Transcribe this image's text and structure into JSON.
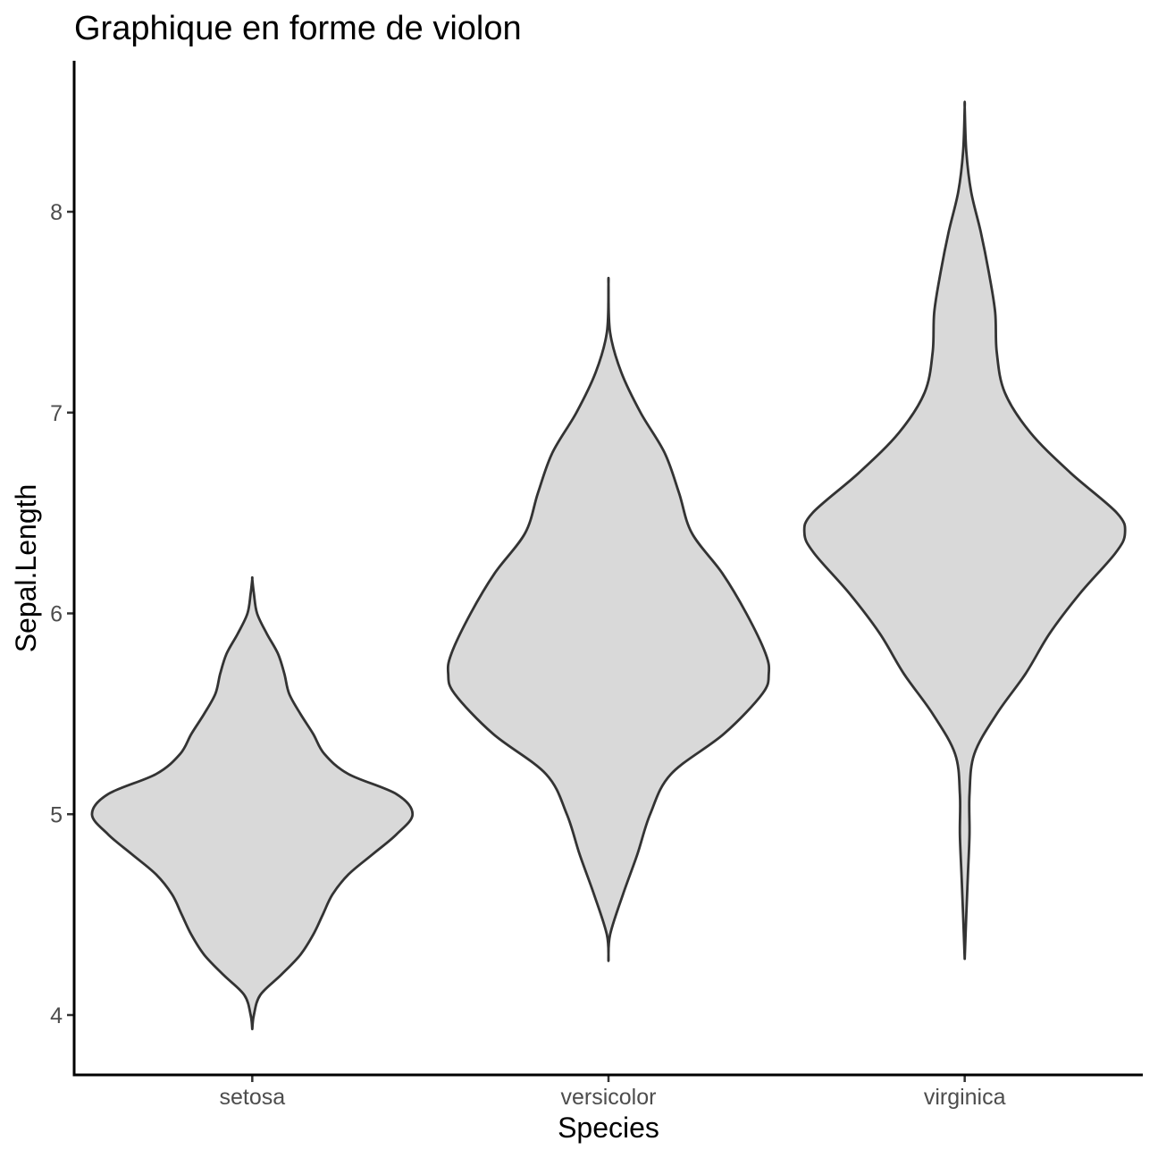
{
  "chart_data": {
    "type": "violin",
    "title": "Graphique en forme de violon",
    "xlabel": "Species",
    "ylabel": "Sepal.Length",
    "categories": [
      "setosa",
      "versicolor",
      "virginica"
    ],
    "y_ticks": [
      4,
      5,
      6,
      7,
      8
    ],
    "ylim": [
      3.7,
      8.65
    ],
    "grid": false,
    "legend": "none",
    "fill_color": "#d9d9d9",
    "outline_color": "#333333",
    "series": [
      {
        "category": "setosa",
        "min": 3.93,
        "max": 6.17,
        "density_profile": [
          {
            "y": 3.93,
            "w": 0.0
          },
          {
            "y": 4.0,
            "w": 0.01
          },
          {
            "y": 4.1,
            "w": 0.05
          },
          {
            "y": 4.2,
            "w": 0.18
          },
          {
            "y": 4.3,
            "w": 0.3
          },
          {
            "y": 4.4,
            "w": 0.38
          },
          {
            "y": 4.5,
            "w": 0.44
          },
          {
            "y": 4.6,
            "w": 0.5
          },
          {
            "y": 4.7,
            "w": 0.6
          },
          {
            "y": 4.8,
            "w": 0.75
          },
          {
            "y": 4.9,
            "w": 0.9
          },
          {
            "y": 5.0,
            "w": 1.0
          },
          {
            "y": 5.1,
            "w": 0.9
          },
          {
            "y": 5.2,
            "w": 0.6
          },
          {
            "y": 5.3,
            "w": 0.45
          },
          {
            "y": 5.4,
            "w": 0.38
          },
          {
            "y": 5.5,
            "w": 0.3
          },
          {
            "y": 5.6,
            "w": 0.23
          },
          {
            "y": 5.7,
            "w": 0.2
          },
          {
            "y": 5.8,
            "w": 0.16
          },
          {
            "y": 5.9,
            "w": 0.09
          },
          {
            "y": 6.0,
            "w": 0.03
          },
          {
            "y": 6.1,
            "w": 0.01
          },
          {
            "y": 6.17,
            "w": 0.0
          }
        ]
      },
      {
        "category": "versicolor",
        "min": 4.27,
        "max": 7.64,
        "density_profile": [
          {
            "y": 4.27,
            "w": 0.0
          },
          {
            "y": 4.4,
            "w": 0.01
          },
          {
            "y": 4.6,
            "w": 0.09
          },
          {
            "y": 4.8,
            "w": 0.18
          },
          {
            "y": 5.0,
            "w": 0.26
          },
          {
            "y": 5.2,
            "w": 0.39
          },
          {
            "y": 5.4,
            "w": 0.72
          },
          {
            "y": 5.6,
            "w": 0.96
          },
          {
            "y": 5.7,
            "w": 1.0
          },
          {
            "y": 5.8,
            "w": 0.98
          },
          {
            "y": 6.0,
            "w": 0.86
          },
          {
            "y": 6.2,
            "w": 0.71
          },
          {
            "y": 6.4,
            "w": 0.52
          },
          {
            "y": 6.6,
            "w": 0.44
          },
          {
            "y": 6.8,
            "w": 0.35
          },
          {
            "y": 7.0,
            "w": 0.2
          },
          {
            "y": 7.2,
            "w": 0.08
          },
          {
            "y": 7.4,
            "w": 0.01
          },
          {
            "y": 7.64,
            "w": 0.0
          }
        ]
      },
      {
        "category": "virginica",
        "min": 4.28,
        "max": 8.52,
        "density_profile": [
          {
            "y": 4.28,
            "w": 0.0
          },
          {
            "y": 4.5,
            "w": 0.01
          },
          {
            "y": 4.7,
            "w": 0.02
          },
          {
            "y": 4.9,
            "w": 0.03
          },
          {
            "y": 5.1,
            "w": 0.03
          },
          {
            "y": 5.3,
            "w": 0.06
          },
          {
            "y": 5.5,
            "w": 0.2
          },
          {
            "y": 5.7,
            "w": 0.38
          },
          {
            "y": 5.9,
            "w": 0.53
          },
          {
            "y": 6.1,
            "w": 0.72
          },
          {
            "y": 6.3,
            "w": 0.94
          },
          {
            "y": 6.4,
            "w": 1.0
          },
          {
            "y": 6.5,
            "w": 0.95
          },
          {
            "y": 6.7,
            "w": 0.66
          },
          {
            "y": 6.9,
            "w": 0.41
          },
          {
            "y": 7.1,
            "w": 0.25
          },
          {
            "y": 7.3,
            "w": 0.2
          },
          {
            "y": 7.5,
            "w": 0.19
          },
          {
            "y": 7.7,
            "w": 0.15
          },
          {
            "y": 7.9,
            "w": 0.1
          },
          {
            "y": 8.1,
            "w": 0.04
          },
          {
            "y": 8.3,
            "w": 0.01
          },
          {
            "y": 8.52,
            "w": 0.0
          }
        ]
      }
    ]
  }
}
